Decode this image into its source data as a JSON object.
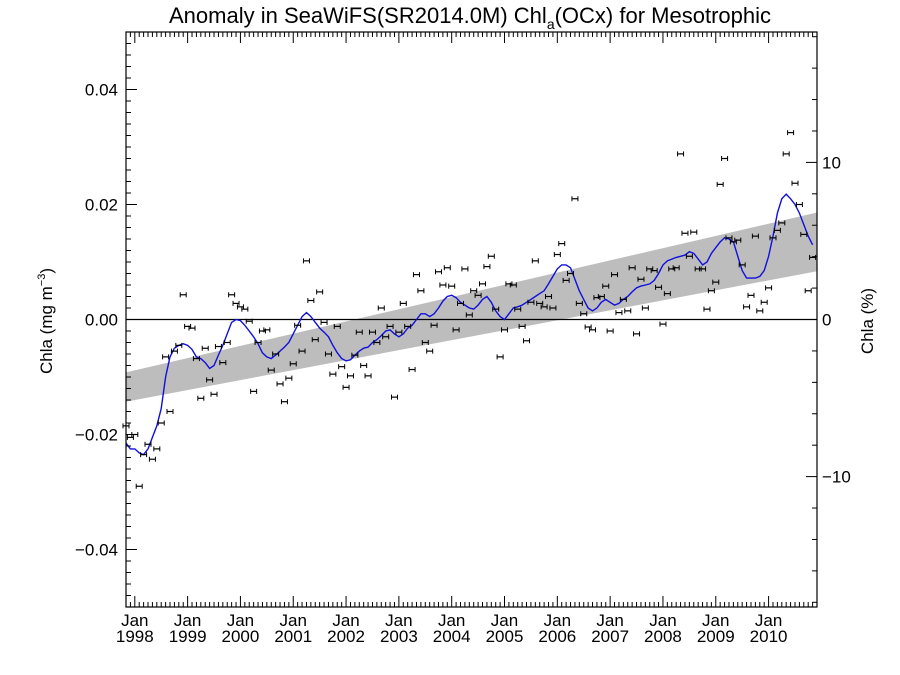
{
  "chart_data": {
    "type": "scatter",
    "title": {
      "prefix": "Anomaly in SeaWiFS(SR2014.0M) Chl",
      "subscript": "a",
      "suffix": "(OCx) for Mesotrophic"
    },
    "ylabel_left": {
      "text": "Chla (mg m",
      "superscript": "−3",
      "close": ")"
    },
    "ylabel_right": "Chla (%)",
    "x_range": [
      "1997-11",
      "2010-12"
    ],
    "ylim_left": [
      -0.05,
      0.05
    ],
    "ylim_right": [
      -18.3,
      18.3
    ],
    "yticks_left": [
      {
        "value": 0.04,
        "label": "0.04"
      },
      {
        "value": 0.02,
        "label": "0.02"
      },
      {
        "value": 0.0,
        "label": "0.00"
      },
      {
        "value": -0.02,
        "label": "−0.02"
      },
      {
        "value": -0.04,
        "label": "−0.04"
      }
    ],
    "yticks_right": [
      {
        "value": 10,
        "label": "10"
      },
      {
        "value": 0,
        "label": "0"
      },
      {
        "value": -10,
        "label": "−10"
      }
    ],
    "xticks": [
      {
        "year": 1998,
        "line1": "Jan",
        "line2": "1998"
      },
      {
        "year": 1999,
        "line1": "Jan",
        "line2": "1999"
      },
      {
        "year": 2000,
        "line1": "Jan",
        "line2": "2000"
      },
      {
        "year": 2001,
        "line1": "Jan",
        "line2": "2001"
      },
      {
        "year": 2002,
        "line1": "Jan",
        "line2": "2002"
      },
      {
        "year": 2003,
        "line1": "Jan",
        "line2": "2003"
      },
      {
        "year": 2004,
        "line1": "Jan",
        "line2": "2004"
      },
      {
        "year": 2005,
        "line1": "Jan",
        "line2": "2005"
      },
      {
        "year": 2006,
        "line1": "Jan",
        "line2": "2006"
      },
      {
        "year": 2007,
        "line1": "Jan",
        "line2": "2007"
      },
      {
        "year": 2008,
        "line1": "Jan",
        "line2": "2008"
      },
      {
        "year": 2009,
        "line1": "Jan",
        "line2": "2009"
      },
      {
        "year": 2010,
        "line1": "Jan",
        "line2": "2010"
      }
    ],
    "trend_band": {
      "start_date": "1997-11",
      "end_date": "2010-12",
      "start_lower": -0.0143,
      "start_upper": -0.0092,
      "end_lower": 0.0084,
      "end_upper": 0.0186
    },
    "zero_line": 0,
    "monthly_anomalies": [
      [
        "1997-11",
        -0.0185
      ],
      [
        "1997-12",
        -0.0205
      ],
      [
        "1998-01",
        -0.02
      ],
      [
        "1998-02",
        -0.029
      ],
      [
        "1998-03",
        -0.0235
      ],
      [
        "1998-04",
        -0.0217
      ],
      [
        "1998-05",
        -0.0243
      ],
      [
        "1998-06",
        -0.0225
      ],
      [
        "1998-07",
        -0.018
      ],
      [
        "1998-08",
        -0.0065
      ],
      [
        "1998-09",
        -0.016
      ],
      [
        "1998-10",
        -0.0055
      ],
      [
        "1998-11",
        -0.0045
      ],
      [
        "1998-12",
        0.0043
      ],
      [
        "1999-01",
        -0.0012
      ],
      [
        "1999-02",
        -0.0015
      ],
      [
        "1999-03",
        -0.0068
      ],
      [
        "1999-04",
        -0.0137
      ],
      [
        "1999-05",
        -0.005
      ],
      [
        "1999-06",
        -0.0105
      ],
      [
        "1999-07",
        -0.013
      ],
      [
        "1999-08",
        -0.0047
      ],
      [
        "1999-09",
        -0.0075
      ],
      [
        "1999-10",
        -0.004
      ],
      [
        "1999-11",
        0.0043
      ],
      [
        "1999-12",
        0.0028
      ],
      [
        "2000-01",
        0.0022
      ],
      [
        "2000-02",
        0.0018
      ],
      [
        "2000-03",
        -0.0003
      ],
      [
        "2000-04",
        -0.0125
      ],
      [
        "2000-05",
        -0.004
      ],
      [
        "2000-06",
        -0.002
      ],
      [
        "2000-07",
        -0.0018
      ],
      [
        "2000-08",
        -0.0088
      ],
      [
        "2000-09",
        -0.006
      ],
      [
        "2000-10",
        -0.0112
      ],
      [
        "2000-11",
        -0.0143
      ],
      [
        "2000-12",
        -0.0102
      ],
      [
        "2001-01",
        -0.0077
      ],
      [
        "2001-02",
        -0.001
      ],
      [
        "2001-03",
        -0.0055
      ],
      [
        "2001-04",
        0.0102
      ],
      [
        "2001-05",
        0.0033
      ],
      [
        "2001-06",
        -0.0035
      ],
      [
        "2001-07",
        0.0048
      ],
      [
        "2001-08",
        -0.0005
      ],
      [
        "2001-09",
        -0.006
      ],
      [
        "2001-10",
        -0.0095
      ],
      [
        "2001-11",
        -0.0012
      ],
      [
        "2001-12",
        -0.0082
      ],
      [
        "2002-01",
        -0.0118
      ],
      [
        "2002-02",
        -0.0098
      ],
      [
        "2002-03",
        -0.0062
      ],
      [
        "2002-04",
        -0.0022
      ],
      [
        "2002-05",
        -0.008
      ],
      [
        "2002-06",
        -0.0098
      ],
      [
        "2002-07",
        -0.0022
      ],
      [
        "2002-08",
        -0.004
      ],
      [
        "2002-09",
        0.002
      ],
      [
        "2002-10",
        -0.003
      ],
      [
        "2002-11",
        -0.0012
      ],
      [
        "2002-12",
        -0.0135
      ],
      [
        "2003-01",
        -0.0022
      ],
      [
        "2003-02",
        0.0028
      ],
      [
        "2003-03",
        -0.0012
      ],
      [
        "2003-04",
        -0.0087
      ],
      [
        "2003-05",
        0.0078
      ],
      [
        "2003-06",
        0.005
      ],
      [
        "2003-07",
        -0.004
      ],
      [
        "2003-08",
        -0.0055
      ],
      [
        "2003-09",
        -0.001
      ],
      [
        "2003-10",
        0.0083
      ],
      [
        "2003-11",
        0.006
      ],
      [
        "2003-12",
        0.009
      ],
      [
        "2004-01",
        0.0058
      ],
      [
        "2004-02",
        -0.0018
      ],
      [
        "2004-03",
        0.0028
      ],
      [
        "2004-04",
        0.0088
      ],
      [
        "2004-05",
        0.0008
      ],
      [
        "2004-06",
        0.005
      ],
      [
        "2004-07",
        0.0042
      ],
      [
        "2004-08",
        0.0062
      ],
      [
        "2004-09",
        0.0092
      ],
      [
        "2004-10",
        0.011
      ],
      [
        "2004-11",
        0.0018
      ],
      [
        "2004-12",
        -0.0065
      ],
      [
        "2005-01",
        -0.0018
      ],
      [
        "2005-02",
        0.0062
      ],
      [
        "2005-03",
        0.006
      ],
      [
        "2005-04",
        0.0018
      ],
      [
        "2005-05",
        -0.0012
      ],
      [
        "2005-06",
        -0.0037
      ],
      [
        "2005-07",
        0.003
      ],
      [
        "2005-08",
        0.0102
      ],
      [
        "2005-09",
        0.0028
      ],
      [
        "2005-10",
        0.0022
      ],
      [
        "2005-11",
        0.004
      ],
      [
        "2005-12",
        0.002
      ],
      [
        "2006-01",
        0.0113
      ],
      [
        "2006-02",
        0.0132
      ],
      [
        "2006-03",
        0.0068
      ],
      [
        "2006-04",
        0.008
      ],
      [
        "2006-05",
        0.021
      ],
      [
        "2006-06",
        0.0028
      ],
      [
        "2006-07",
        0.001
      ],
      [
        "2006-08",
        -0.0013
      ],
      [
        "2006-09",
        -0.0018
      ],
      [
        "2006-10",
        0.0038
      ],
      [
        "2006-11",
        0.004
      ],
      [
        "2006-12",
        0.0058
      ],
      [
        "2007-01",
        -0.002
      ],
      [
        "2007-02",
        0.0078
      ],
      [
        "2007-03",
        0.0012
      ],
      [
        "2007-04",
        0.0035
      ],
      [
        "2007-05",
        0.0015
      ],
      [
        "2007-06",
        0.009
      ],
      [
        "2007-07",
        -0.0025
      ],
      [
        "2007-08",
        0.007
      ],
      [
        "2007-09",
        0.002
      ],
      [
        "2007-10",
        0.0088
      ],
      [
        "2007-11",
        0.0085
      ],
      [
        "2007-12",
        0.0056
      ],
      [
        "2008-01",
        -0.0008
      ],
      [
        "2008-02",
        0.0045
      ],
      [
        "2008-03",
        0.0088
      ],
      [
        "2008-04",
        0.009
      ],
      [
        "2008-05",
        0.0288
      ],
      [
        "2008-06",
        0.015
      ],
      [
        "2008-07",
        0.011
      ],
      [
        "2008-08",
        0.0152
      ],
      [
        "2008-09",
        0.0088
      ],
      [
        "2008-10",
        0.0088
      ],
      [
        "2008-11",
        0.0018
      ],
      [
        "2008-12",
        0.005
      ],
      [
        "2009-01",
        0.0065
      ],
      [
        "2009-02",
        0.0235
      ],
      [
        "2009-03",
        0.028
      ],
      [
        "2009-04",
        0.0142
      ],
      [
        "2009-05",
        0.0135
      ],
      [
        "2009-06",
        0.0138
      ],
      [
        "2009-07",
        0.0095
      ],
      [
        "2009-08",
        0.0022
      ],
      [
        "2009-09",
        0.0042
      ],
      [
        "2009-10",
        0.0145
      ],
      [
        "2009-11",
        0.0015
      ],
      [
        "2009-12",
        0.003
      ],
      [
        "2010-01",
        0.0055
      ],
      [
        "2010-02",
        0.0142
      ],
      [
        "2010-03",
        0.0155
      ],
      [
        "2010-04",
        0.0168
      ],
      [
        "2010-05",
        0.0288
      ],
      [
        "2010-06",
        0.0325
      ],
      [
        "2010-07",
        0.0237
      ],
      [
        "2010-08",
        0.02
      ],
      [
        "2010-09",
        0.0148
      ],
      [
        "2010-10",
        0.005
      ],
      [
        "2010-11",
        0.0108
      ]
    ],
    "smoothed_line": [
      [
        "1997-11",
        -0.0215
      ],
      [
        "1997-12",
        -0.0225
      ],
      [
        "1998-01",
        -0.0225
      ],
      [
        "1998-02",
        -0.0232
      ],
      [
        "1998-03",
        -0.0235
      ],
      [
        "1998-04",
        -0.0225
      ],
      [
        "1998-05",
        -0.0205
      ],
      [
        "1998-06",
        -0.0185
      ],
      [
        "1998-07",
        -0.0155
      ],
      [
        "1998-08",
        -0.01
      ],
      [
        "1998-09",
        -0.0065
      ],
      [
        "1998-10",
        -0.005
      ],
      [
        "1998-11",
        -0.0045
      ],
      [
        "1998-12",
        -0.0042
      ],
      [
        "1999-01",
        -0.0045
      ],
      [
        "1999-02",
        -0.0052
      ],
      [
        "1999-03",
        -0.0065
      ],
      [
        "1999-04",
        -0.0068
      ],
      [
        "1999-05",
        -0.0075
      ],
      [
        "1999-06",
        -0.0085
      ],
      [
        "1999-07",
        -0.008
      ],
      [
        "1999-08",
        -0.0062
      ],
      [
        "1999-09",
        -0.0045
      ],
      [
        "1999-10",
        -0.0025
      ],
      [
        "1999-11",
        -0.0005
      ],
      [
        "1999-12",
        0.0
      ],
      [
        "2000-01",
        -0.0002
      ],
      [
        "2000-02",
        -0.001
      ],
      [
        "2000-03",
        -0.002
      ],
      [
        "2000-04",
        -0.003
      ],
      [
        "2000-05",
        -0.0042
      ],
      [
        "2000-06",
        -0.0058
      ],
      [
        "2000-07",
        -0.0065
      ],
      [
        "2000-08",
        -0.0068
      ],
      [
        "2000-09",
        -0.0062
      ],
      [
        "2000-10",
        -0.0055
      ],
      [
        "2000-11",
        -0.0048
      ],
      [
        "2000-12",
        -0.004
      ],
      [
        "2001-01",
        -0.0025
      ],
      [
        "2001-02",
        -0.001
      ],
      [
        "2001-03",
        0.0005
      ],
      [
        "2001-04",
        0.0012
      ],
      [
        "2001-05",
        0.0005
      ],
      [
        "2001-06",
        -0.0005
      ],
      [
        "2001-07",
        -0.0015
      ],
      [
        "2001-08",
        -0.0022
      ],
      [
        "2001-09",
        -0.003
      ],
      [
        "2001-10",
        -0.0045
      ],
      [
        "2001-11",
        -0.0058
      ],
      [
        "2001-12",
        -0.0068
      ],
      [
        "2002-01",
        -0.0072
      ],
      [
        "2002-02",
        -0.007
      ],
      [
        "2002-03",
        -0.0062
      ],
      [
        "2002-04",
        -0.0055
      ],
      [
        "2002-05",
        -0.005
      ],
      [
        "2002-06",
        -0.0048
      ],
      [
        "2002-07",
        -0.004
      ],
      [
        "2002-08",
        -0.0035
      ],
      [
        "2002-09",
        -0.0028
      ],
      [
        "2002-10",
        -0.002
      ],
      [
        "2002-11",
        -0.0018
      ],
      [
        "2002-12",
        -0.0025
      ],
      [
        "2003-01",
        -0.003
      ],
      [
        "2003-02",
        -0.0025
      ],
      [
        "2003-03",
        -0.0015
      ],
      [
        "2003-04",
        -0.001
      ],
      [
        "2003-05",
        0.0
      ],
      [
        "2003-06",
        0.001
      ],
      [
        "2003-07",
        0.001
      ],
      [
        "2003-08",
        0.0005
      ],
      [
        "2003-09",
        0.001
      ],
      [
        "2003-10",
        0.002
      ],
      [
        "2003-11",
        0.0032
      ],
      [
        "2003-12",
        0.004
      ],
      [
        "2004-01",
        0.0042
      ],
      [
        "2004-02",
        0.0038
      ],
      [
        "2004-03",
        0.003
      ],
      [
        "2004-04",
        0.0025
      ],
      [
        "2004-05",
        0.002
      ],
      [
        "2004-06",
        0.0018
      ],
      [
        "2004-07",
        0.0025
      ],
      [
        "2004-08",
        0.0035
      ],
      [
        "2004-09",
        0.004
      ],
      [
        "2004-10",
        0.003
      ],
      [
        "2004-11",
        0.0015
      ],
      [
        "2004-12",
        0.0005
      ],
      [
        "2005-01",
        0.0
      ],
      [
        "2005-02",
        0.001
      ],
      [
        "2005-03",
        0.002
      ],
      [
        "2005-04",
        0.0022
      ],
      [
        "2005-05",
        0.0025
      ],
      [
        "2005-06",
        0.003
      ],
      [
        "2005-07",
        0.0035
      ],
      [
        "2005-08",
        0.004
      ],
      [
        "2005-09",
        0.0045
      ],
      [
        "2005-10",
        0.005
      ],
      [
        "2005-11",
        0.0062
      ],
      [
        "2005-12",
        0.0075
      ],
      [
        "2006-01",
        0.0088
      ],
      [
        "2006-02",
        0.0095
      ],
      [
        "2006-03",
        0.0095
      ],
      [
        "2006-04",
        0.009
      ],
      [
        "2006-05",
        0.007
      ],
      [
        "2006-06",
        0.005
      ],
      [
        "2006-07",
        0.0035
      ],
      [
        "2006-08",
        0.002
      ],
      [
        "2006-09",
        0.0015
      ],
      [
        "2006-10",
        0.002
      ],
      [
        "2006-11",
        0.003
      ],
      [
        "2006-12",
        0.0035
      ],
      [
        "2007-01",
        0.003
      ],
      [
        "2007-02",
        0.0025
      ],
      [
        "2007-03",
        0.0028
      ],
      [
        "2007-04",
        0.0035
      ],
      [
        "2007-05",
        0.004
      ],
      [
        "2007-06",
        0.0048
      ],
      [
        "2007-07",
        0.0055
      ],
      [
        "2007-08",
        0.0058
      ],
      [
        "2007-09",
        0.006
      ],
      [
        "2007-10",
        0.0062
      ],
      [
        "2007-11",
        0.0068
      ],
      [
        "2007-12",
        0.008
      ],
      [
        "2008-01",
        0.0095
      ],
      [
        "2008-02",
        0.0102
      ],
      [
        "2008-03",
        0.0105
      ],
      [
        "2008-04",
        0.0108
      ],
      [
        "2008-05",
        0.011
      ],
      [
        "2008-06",
        0.0112
      ],
      [
        "2008-07",
        0.0118
      ],
      [
        "2008-08",
        0.0115
      ],
      [
        "2008-09",
        0.0105
      ],
      [
        "2008-10",
        0.0095
      ],
      [
        "2008-11",
        0.01
      ],
      [
        "2008-12",
        0.0115
      ],
      [
        "2009-01",
        0.0125
      ],
      [
        "2009-02",
        0.0135
      ],
      [
        "2009-03",
        0.0142
      ],
      [
        "2009-04",
        0.014
      ],
      [
        "2009-05",
        0.0135
      ],
      [
        "2009-06",
        0.011
      ],
      [
        "2009-07",
        0.0085
      ],
      [
        "2009-08",
        0.0072
      ],
      [
        "2009-09",
        0.0072
      ],
      [
        "2009-10",
        0.0072
      ],
      [
        "2009-11",
        0.0075
      ],
      [
        "2009-12",
        0.0085
      ],
      [
        "2010-01",
        0.011
      ],
      [
        "2010-02",
        0.0145
      ],
      [
        "2010-03",
        0.0185
      ],
      [
        "2010-04",
        0.021
      ],
      [
        "2010-05",
        0.0218
      ],
      [
        "2010-06",
        0.021
      ],
      [
        "2010-07",
        0.02
      ],
      [
        "2010-08",
        0.0185
      ],
      [
        "2010-09",
        0.0165
      ],
      [
        "2010-10",
        0.0145
      ],
      [
        "2010-11",
        0.013
      ]
    ],
    "colors": {
      "line": "#1010dd",
      "band": "#bdbdbd",
      "markers": "#000000",
      "axes": "#000000"
    }
  }
}
